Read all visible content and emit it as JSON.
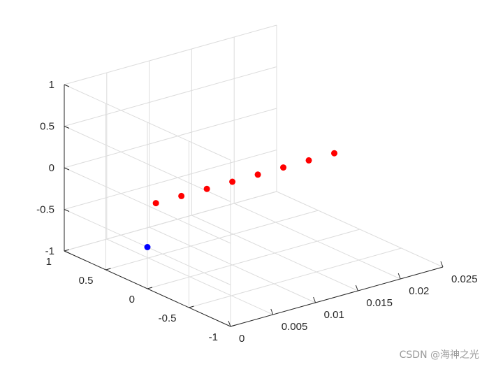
{
  "chart_data": {
    "type": "scatter",
    "projection": "3d",
    "grid": true,
    "xlim": [
      0,
      0.025
    ],
    "ylim": [
      -1,
      1
    ],
    "zlim": [
      -1,
      1
    ],
    "x_ticks": [
      "0",
      "0.005",
      "0.01",
      "0.015",
      "0.02",
      "0.025"
    ],
    "y_ticks": [
      "1",
      "0.5",
      "0",
      "-0.5",
      "-1"
    ],
    "z_ticks": [
      "1",
      "0.5",
      "0",
      "-0.5",
      "-1"
    ],
    "series": [
      {
        "color": "#ff0000",
        "points": [
          {
            "x": 0.001,
            "y": 0,
            "z": 0
          },
          {
            "x": 0.004,
            "y": 0,
            "z": 0
          },
          {
            "x": 0.007,
            "y": 0,
            "z": 0
          },
          {
            "x": 0.01,
            "y": 0,
            "z": 0
          },
          {
            "x": 0.013,
            "y": 0,
            "z": 0
          },
          {
            "x": 0.016,
            "y": 0,
            "z": 0
          },
          {
            "x": 0.019,
            "y": 0,
            "z": 0
          },
          {
            "x": 0.022,
            "y": 0,
            "z": 0
          }
        ]
      },
      {
        "color": "#0000ff",
        "points": [
          {
            "x": 0,
            "y": 0,
            "z": -0.5
          }
        ]
      }
    ]
  },
  "watermark": "CSDN @海神之光"
}
